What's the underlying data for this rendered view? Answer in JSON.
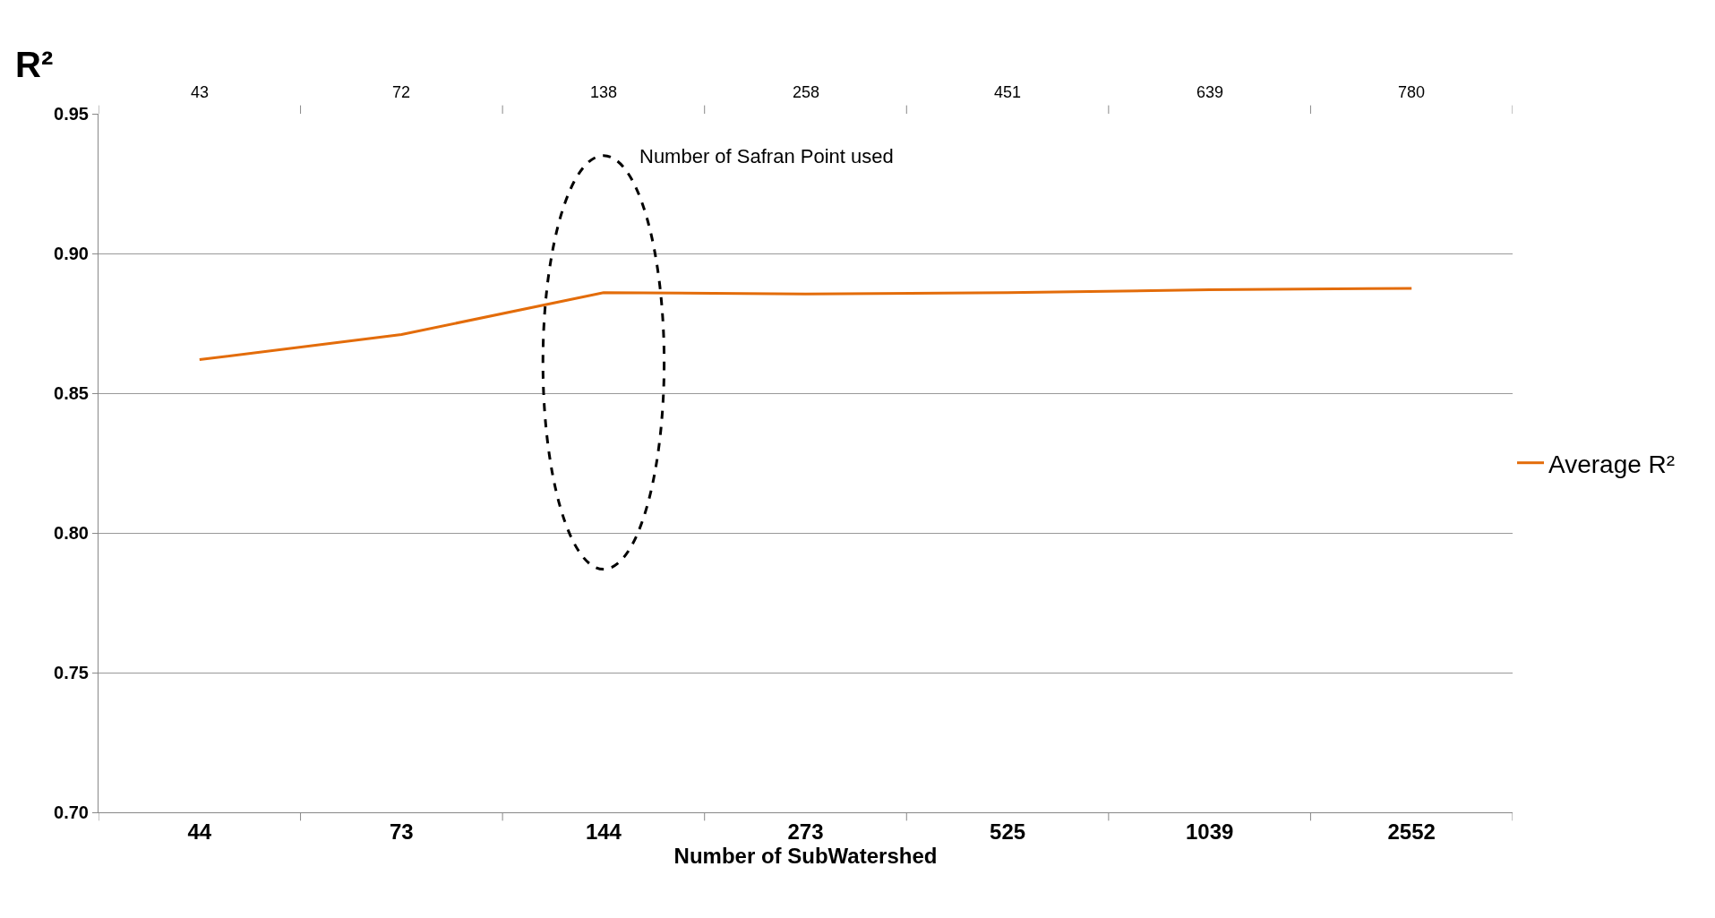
{
  "chart_data": {
    "type": "line",
    "xlabel": "Number of SubWatershed",
    "ylabel": "R²",
    "categories": [
      "44",
      "73",
      "144",
      "273",
      "525",
      "1039",
      "2552"
    ],
    "series": [
      {
        "name": "Average R²",
        "color": "#e36c0a",
        "values": [
          0.862,
          0.871,
          0.886,
          0.8855,
          0.886,
          0.887,
          0.8875
        ]
      }
    ],
    "ylim": [
      0.7,
      0.95
    ],
    "yticks": [
      {
        "value": 0.7,
        "label": "0.70"
      },
      {
        "value": 0.75,
        "label": "0.75"
      },
      {
        "value": 0.8,
        "label": "0.80"
      },
      {
        "value": 0.85,
        "label": "0.85"
      },
      {
        "value": 0.9,
        "label": "0.90"
      },
      {
        "value": 0.95,
        "label": "0.95"
      }
    ],
    "grid": "y",
    "legend": "right",
    "marker": "none",
    "annotations": [
      "Number of Safran Point used",
      "43",
      "72",
      "138",
      "258",
      "451",
      "639",
      "780"
    ]
  }
}
